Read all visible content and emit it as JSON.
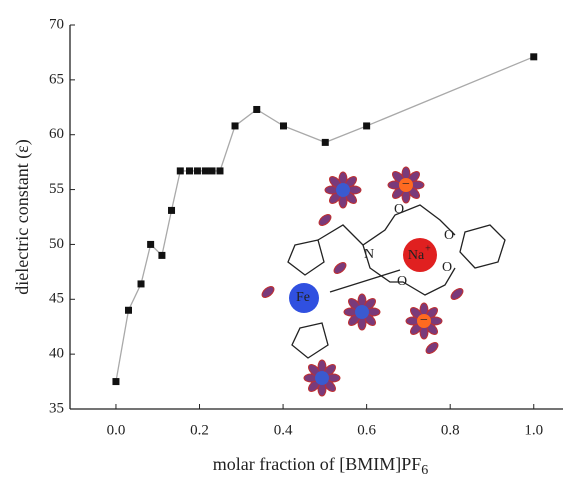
{
  "chart_data": {
    "type": "line",
    "x_label": "molar fraction of [BMIM]PF",
    "x_label_subscript": "6",
    "y_label": "dielectric constant (ε)",
    "x": [
      0,
      0.03,
      0.06,
      0.083,
      0.11,
      0.133,
      0.154,
      0.176,
      0.195,
      0.214,
      0.23,
      0.249,
      0.285,
      0.337,
      0.401,
      0.501,
      0.6,
      1.0
    ],
    "series": [
      {
        "color": "#a9a9a9",
        "values": [
          37.5,
          44.0,
          46.4,
          50.0,
          49.0,
          53.1,
          56.7,
          56.7,
          56.7,
          56.7,
          56.7,
          56.7,
          60.8,
          62.3,
          60.8,
          59.3,
          60.8,
          67.1
        ]
      }
    ],
    "xlim": [
      -0.11,
      1.07
    ],
    "ylim": [
      35,
      70
    ],
    "xticks": [
      {
        "value": 0,
        "label": "0.0"
      },
      0.2,
      0.4,
      0.6,
      0.8,
      {
        "value": 1,
        "label": "1.0"
      }
    ],
    "yticks": [
      35,
      40,
      45,
      50,
      55,
      60,
      65,
      70
    ],
    "inset_labels": [
      "N",
      "O",
      "O",
      "O",
      "O",
      "Fe",
      "Na",
      "+",
      "−",
      "−"
    ]
  }
}
